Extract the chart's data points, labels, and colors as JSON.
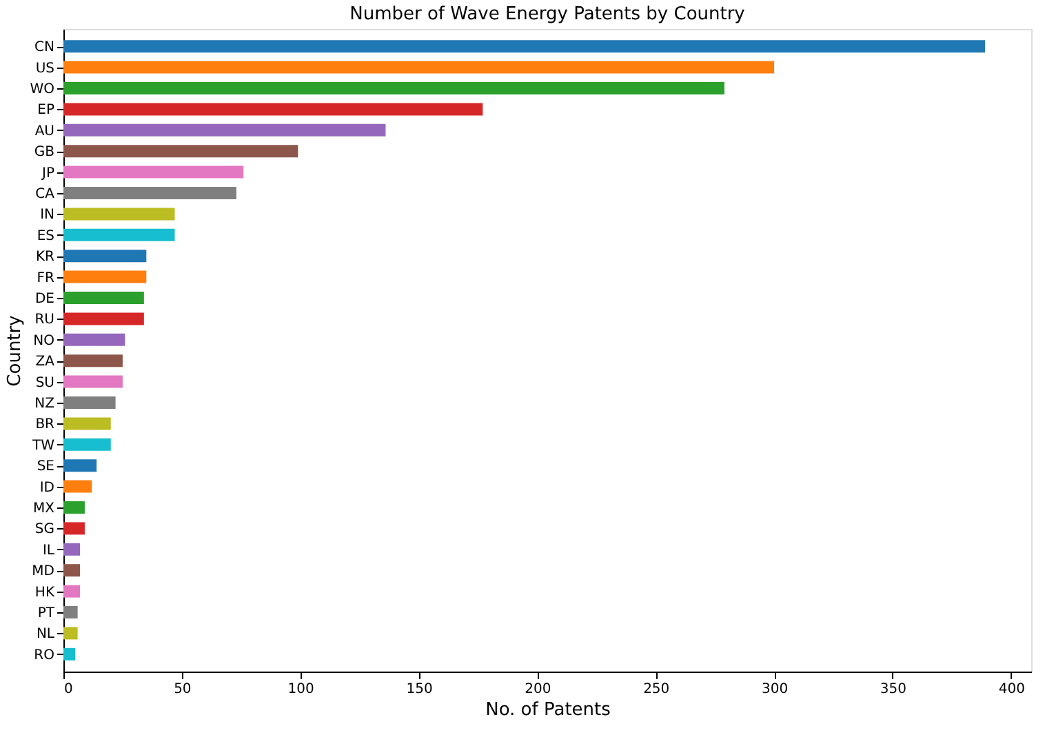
{
  "chart_data": {
    "type": "bar",
    "orientation": "horizontal",
    "title": "Number of Wave Energy Patents by Country",
    "xlabel": "No. of Patents",
    "ylabel": "Country",
    "categories": [
      "CN",
      "US",
      "WO",
      "EP",
      "AU",
      "GB",
      "JP",
      "CA",
      "IN",
      "ES",
      "KR",
      "FR",
      "DE",
      "RU",
      "NO",
      "ZA",
      "SU",
      "NZ",
      "BR",
      "TW",
      "SE",
      "ID",
      "MX",
      "SG",
      "IL",
      "MD",
      "HK",
      "PT",
      "NL",
      "RO"
    ],
    "values": [
      389,
      300,
      279,
      177,
      136,
      99,
      76,
      73,
      47,
      47,
      35,
      35,
      34,
      34,
      26,
      25,
      25,
      22,
      20,
      20,
      14,
      12,
      9,
      9,
      7,
      7,
      7,
      6,
      6,
      5
    ],
    "colors": [
      "#1f77b4",
      "#ff7f0e",
      "#2ca02c",
      "#d62728",
      "#9467bd",
      "#8c564b",
      "#e377c2",
      "#7f7f7f",
      "#bcbd22",
      "#17becf",
      "#1f77b4",
      "#ff7f0e",
      "#2ca02c",
      "#d62728",
      "#9467bd",
      "#8c564b",
      "#e377c2",
      "#7f7f7f",
      "#bcbd22",
      "#17becf",
      "#1f77b4",
      "#ff7f0e",
      "#2ca02c",
      "#d62728",
      "#9467bd",
      "#8c564b",
      "#e377c2",
      "#7f7f7f",
      "#bcbd22",
      "#17becf"
    ],
    "xlim": [
      0,
      408.5
    ],
    "xticks": [
      0,
      50,
      100,
      150,
      200,
      250,
      300,
      350,
      400
    ],
    "grid": false
  }
}
